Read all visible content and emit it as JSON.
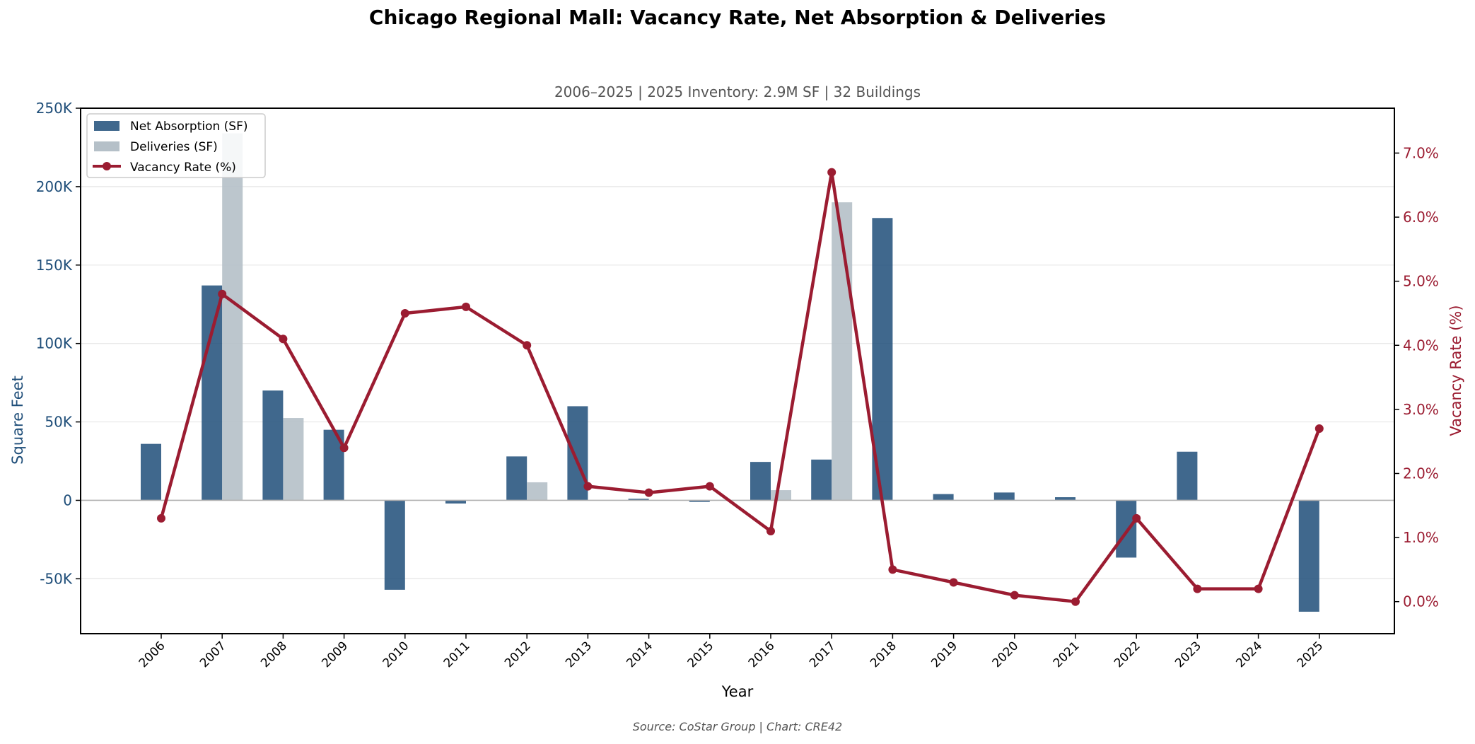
{
  "chart_data": {
    "type": "bar",
    "title": "Chicago Regional Mall: Vacancy Rate, Net Absorption & Deliveries",
    "subtitle": "2006–2025  |  2025 Inventory: 2.9M SF  |  32 Buildings",
    "source": "Source: CoStar Group  |  Chart: CRE42",
    "xlabel": "Year",
    "ylabel_left": "Square Feet",
    "ylabel_right": "Vacancy Rate (%)",
    "categories": [
      "2006",
      "2007",
      "2008",
      "2009",
      "2010",
      "2011",
      "2012",
      "2013",
      "2014",
      "2015",
      "2016",
      "2017",
      "2018",
      "2019",
      "2020",
      "2021",
      "2022",
      "2023",
      "2024",
      "2025"
    ],
    "series": [
      {
        "name": "Net Absorption (SF)",
        "kind": "bar",
        "axis": "left",
        "color": "#1f4e79",
        "values": [
          36000,
          137000,
          70000,
          45000,
          -57000,
          -2000,
          28000,
          60000,
          1000,
          -1000,
          24500,
          26000,
          180000,
          4000,
          5000,
          2000,
          -36500,
          31000,
          0,
          -71000
        ]
      },
      {
        "name": "Deliveries (SF)",
        "kind": "bar",
        "axis": "left",
        "color": "#b5c0c8",
        "values": [
          0,
          234000,
          52500,
          0,
          0,
          0,
          11500,
          0,
          0,
          0,
          6500,
          190000,
          0,
          0,
          0,
          0,
          0,
          0,
          0,
          0
        ]
      },
      {
        "name": "Vacancy Rate (%)",
        "kind": "line",
        "axis": "right",
        "color": "#9b1c31",
        "values": [
          1.3,
          4.8,
          4.1,
          2.4,
          4.5,
          4.6,
          4.0,
          1.8,
          1.7,
          1.8,
          1.1,
          6.7,
          0.5,
          0.3,
          0.1,
          0.0,
          1.3,
          0.2,
          0.2,
          2.7
        ]
      }
    ],
    "ylim_left": [
      -85000,
      250000
    ],
    "yticks_left": [
      -50000,
      0,
      50000,
      100000,
      150000,
      200000,
      250000
    ],
    "ytick_labels_left": [
      "-50K",
      "0",
      "50K",
      "100K",
      "150K",
      "200K",
      "250K"
    ],
    "ylim_right": [
      -0.5,
      7.7
    ],
    "yticks_right": [
      0,
      1,
      2,
      3,
      4,
      5,
      6,
      7
    ],
    "ytick_labels_right": [
      "0.0%",
      "1.0%",
      "2.0%",
      "3.0%",
      "4.0%",
      "5.0%",
      "6.0%",
      "7.0%"
    ],
    "grid": true,
    "legend_position": "top-left"
  }
}
